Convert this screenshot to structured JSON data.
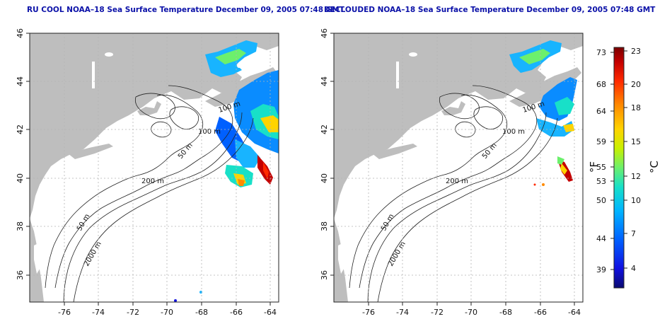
{
  "maps": [
    {
      "title": "RU COOL NOAA–18 Sea Surface Temperature December 09, 2005 07:48 GMT",
      "lat_ticks": [
        "46",
        "44",
        "42",
        "40",
        "38",
        "36"
      ],
      "lon_ticks": [
        "-76",
        "-74",
        "-72",
        "-70",
        "-68",
        "-66",
        "-64"
      ],
      "contour_labels": [
        "100 m",
        "100 m",
        "50 m",
        "200 m",
        "50 m",
        "2000 m"
      ]
    },
    {
      "title": "DECLOUDED NOAA–18 Sea Surface Temperature December 09, 2005 07:48 GMT",
      "lat_ticks": [
        "46",
        "44",
        "42",
        "40",
        "38",
        "36"
      ],
      "lon_ticks": [
        "-76",
        "-74",
        "-72",
        "-70",
        "-68",
        "-66",
        "-64"
      ],
      "contour_labels": [
        "100 m",
        "100 m",
        "50 m",
        "200 m",
        "50 m",
        "2000 m"
      ]
    }
  ],
  "colorbar": {
    "fahrenheit_label": "°F",
    "celsius_label": "°C",
    "fahrenheit_ticks": [
      "73",
      "68",
      "64",
      "59",
      "55",
      "53",
      "50",
      "44",
      "39"
    ],
    "celsius_ticks": [
      "23",
      "20",
      "18",
      "15",
      "12",
      "10",
      "7",
      "4"
    ],
    "colors": [
      "#7a0000",
      "#c40000",
      "#ff2a00",
      "#ff8a00",
      "#ffd400",
      "#c8f000",
      "#6cf06c",
      "#18e0c8",
      "#00b4ff",
      "#0060ff",
      "#1010e0",
      "#0a0a70"
    ]
  },
  "colors": {
    "land": "#bebebe",
    "title": "#0b11a8",
    "grid": "#b4b4b4"
  }
}
